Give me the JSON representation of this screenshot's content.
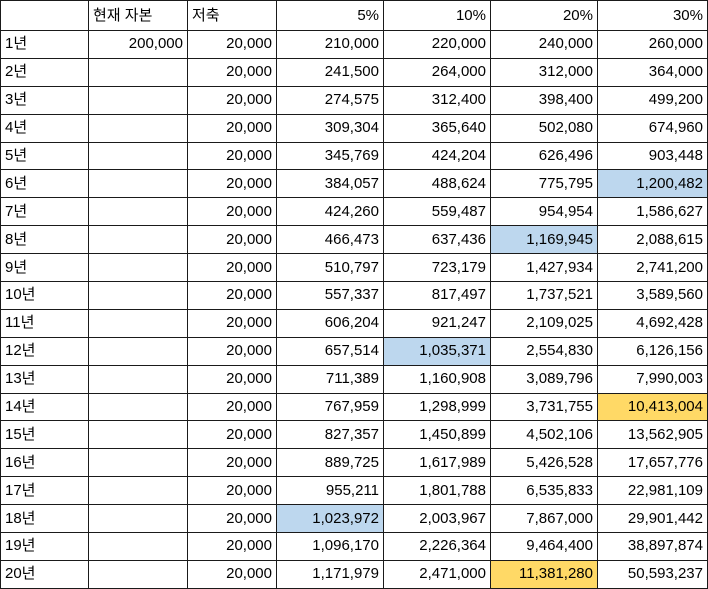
{
  "header": {
    "blank": "",
    "capital": "현재 자본",
    "savings": "저축",
    "rate_5": "5%",
    "rate_10": "10%",
    "rate_20": "20%",
    "rate_30": "30%"
  },
  "rows": [
    {
      "year": "1년",
      "capital": "200,000",
      "savings": "20,000",
      "r5": "210,000",
      "r10": "220,000",
      "r20": "240,000",
      "r30": "260,000"
    },
    {
      "year": "2년",
      "capital": "",
      "savings": "20,000",
      "r5": "241,500",
      "r10": "264,000",
      "r20": "312,000",
      "r30": "364,000"
    },
    {
      "year": "3년",
      "capital": "",
      "savings": "20,000",
      "r5": "274,575",
      "r10": "312,400",
      "r20": "398,400",
      "r30": "499,200"
    },
    {
      "year": "4년",
      "capital": "",
      "savings": "20,000",
      "r5": "309,304",
      "r10": "365,640",
      "r20": "502,080",
      "r30": "674,960"
    },
    {
      "year": "5년",
      "capital": "",
      "savings": "20,000",
      "r5": "345,769",
      "r10": "424,204",
      "r20": "626,496",
      "r30": "903,448"
    },
    {
      "year": "6년",
      "capital": "",
      "savings": "20,000",
      "r5": "384,057",
      "r10": "488,624",
      "r20": "775,795",
      "r30": "1,200,482"
    },
    {
      "year": "7년",
      "capital": "",
      "savings": "20,000",
      "r5": "424,260",
      "r10": "559,487",
      "r20": "954,954",
      "r30": "1,586,627"
    },
    {
      "year": "8년",
      "capital": "",
      "savings": "20,000",
      "r5": "466,473",
      "r10": "637,436",
      "r20": "1,169,945",
      "r30": "2,088,615"
    },
    {
      "year": "9년",
      "capital": "",
      "savings": "20,000",
      "r5": "510,797",
      "r10": "723,179",
      "r20": "1,427,934",
      "r30": "2,741,200"
    },
    {
      "year": "10년",
      "capital": "",
      "savings": "20,000",
      "r5": "557,337",
      "r10": "817,497",
      "r20": "1,737,521",
      "r30": "3,589,560"
    },
    {
      "year": "11년",
      "capital": "",
      "savings": "20,000",
      "r5": "606,204",
      "r10": "921,247",
      "r20": "2,109,025",
      "r30": "4,692,428"
    },
    {
      "year": "12년",
      "capital": "",
      "savings": "20,000",
      "r5": "657,514",
      "r10": "1,035,371",
      "r20": "2,554,830",
      "r30": "6,126,156"
    },
    {
      "year": "13년",
      "capital": "",
      "savings": "20,000",
      "r5": "711,389",
      "r10": "1,160,908",
      "r20": "3,089,796",
      "r30": "7,990,003"
    },
    {
      "year": "14년",
      "capital": "",
      "savings": "20,000",
      "r5": "767,959",
      "r10": "1,298,999",
      "r20": "3,731,755",
      "r30": "10,413,004"
    },
    {
      "year": "15년",
      "capital": "",
      "savings": "20,000",
      "r5": "827,357",
      "r10": "1,450,899",
      "r20": "4,502,106",
      "r30": "13,562,905"
    },
    {
      "year": "16년",
      "capital": "",
      "savings": "20,000",
      "r5": "889,725",
      "r10": "1,617,989",
      "r20": "5,426,528",
      "r30": "17,657,776"
    },
    {
      "year": "17년",
      "capital": "",
      "savings": "20,000",
      "r5": "955,211",
      "r10": "1,801,788",
      "r20": "6,535,833",
      "r30": "22,981,109"
    },
    {
      "year": "18년",
      "capital": "",
      "savings": "20,000",
      "r5": "1,023,972",
      "r10": "2,003,967",
      "r20": "7,867,000",
      "r30": "29,901,442"
    },
    {
      "year": "19년",
      "capital": "",
      "savings": "20,000",
      "r5": "1,096,170",
      "r10": "2,226,364",
      "r20": "9,464,400",
      "r30": "38,897,874"
    },
    {
      "year": "20년",
      "capital": "",
      "savings": "20,000",
      "r5": "1,171,979",
      "r10": "2,471,000",
      "r20": "11,381,280",
      "r30": "50,593,237"
    }
  ],
  "highlight_colors": {
    "blue": "#bdd7ee",
    "gold": "#ffd966"
  }
}
